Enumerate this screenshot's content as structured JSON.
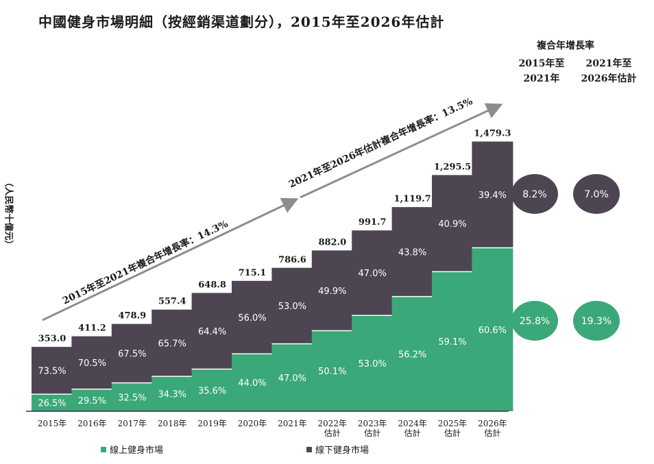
{
  "chart_data": {
    "type": "bar",
    "title": "中國健身市場明細（按經銷渠道劃分），2015年至2026年估計",
    "ylabel": "（人民幣十億元）",
    "categories": [
      "2015年",
      "2016年",
      "2017年",
      "2018年",
      "2019年",
      "2020年",
      "2021年",
      "2022年\n估計",
      "2023年\n估計",
      "2024年\n估計",
      "2025年\n估計",
      "2026年\n估計"
    ],
    "totals": [
      353.0,
      411.2,
      478.9,
      557.4,
      648.8,
      715.1,
      786.6,
      882.0,
      991.7,
      1119.7,
      1295.5,
      1479.3
    ],
    "total_labels": [
      "353.0",
      "411.2",
      "478.9",
      "557.4",
      "648.8",
      "715.1",
      "786.6",
      "882.0",
      "991.7",
      "1,119.7",
      "1,295.5",
      "1,479.3"
    ],
    "series": [
      {
        "name": "線上健身市場",
        "color": "#3aa878",
        "percent_labels": [
          "26.5%",
          "29.5%",
          "32.5%",
          "34.3%",
          "35.6%",
          "44.0%",
          "47.0%",
          "50.1%",
          "53.0%",
          "56.2%",
          "59.1%",
          "60.6%"
        ],
        "percents": [
          26.5,
          29.5,
          32.5,
          34.3,
          35.6,
          44.0,
          47.0,
          50.1,
          53.0,
          56.2,
          59.1,
          60.6
        ]
      },
      {
        "name": "線下健身市場",
        "color": "#4e4552",
        "percent_labels": [
          "73.5%",
          "70.5%",
          "67.5%",
          "65.7%",
          "64.4%",
          "56.0%",
          "53.0%",
          "49.9%",
          "47.0%",
          "43.8%",
          "40.9%",
          "39.4%"
        ],
        "percents": [
          73.5,
          70.5,
          67.5,
          65.7,
          64.4,
          56.0,
          53.0,
          49.9,
          47.0,
          43.8,
          40.9,
          39.4
        ]
      }
    ],
    "ylim": [
      0,
      1600
    ],
    "annotations": [
      "2015年至2021年複合年增長率：14.3%",
      "2021年至2026年估計複合年增長率：13.5%"
    ],
    "cagr": {
      "header": "複合年增長率",
      "col1": [
        "2015年至",
        "2021年"
      ],
      "col2": [
        "2021年至",
        "2026年估計"
      ],
      "offline": [
        "8.2%",
        "7.0%"
      ],
      "online": [
        "25.8%",
        "19.3%"
      ]
    },
    "legend_position": "bottom"
  }
}
